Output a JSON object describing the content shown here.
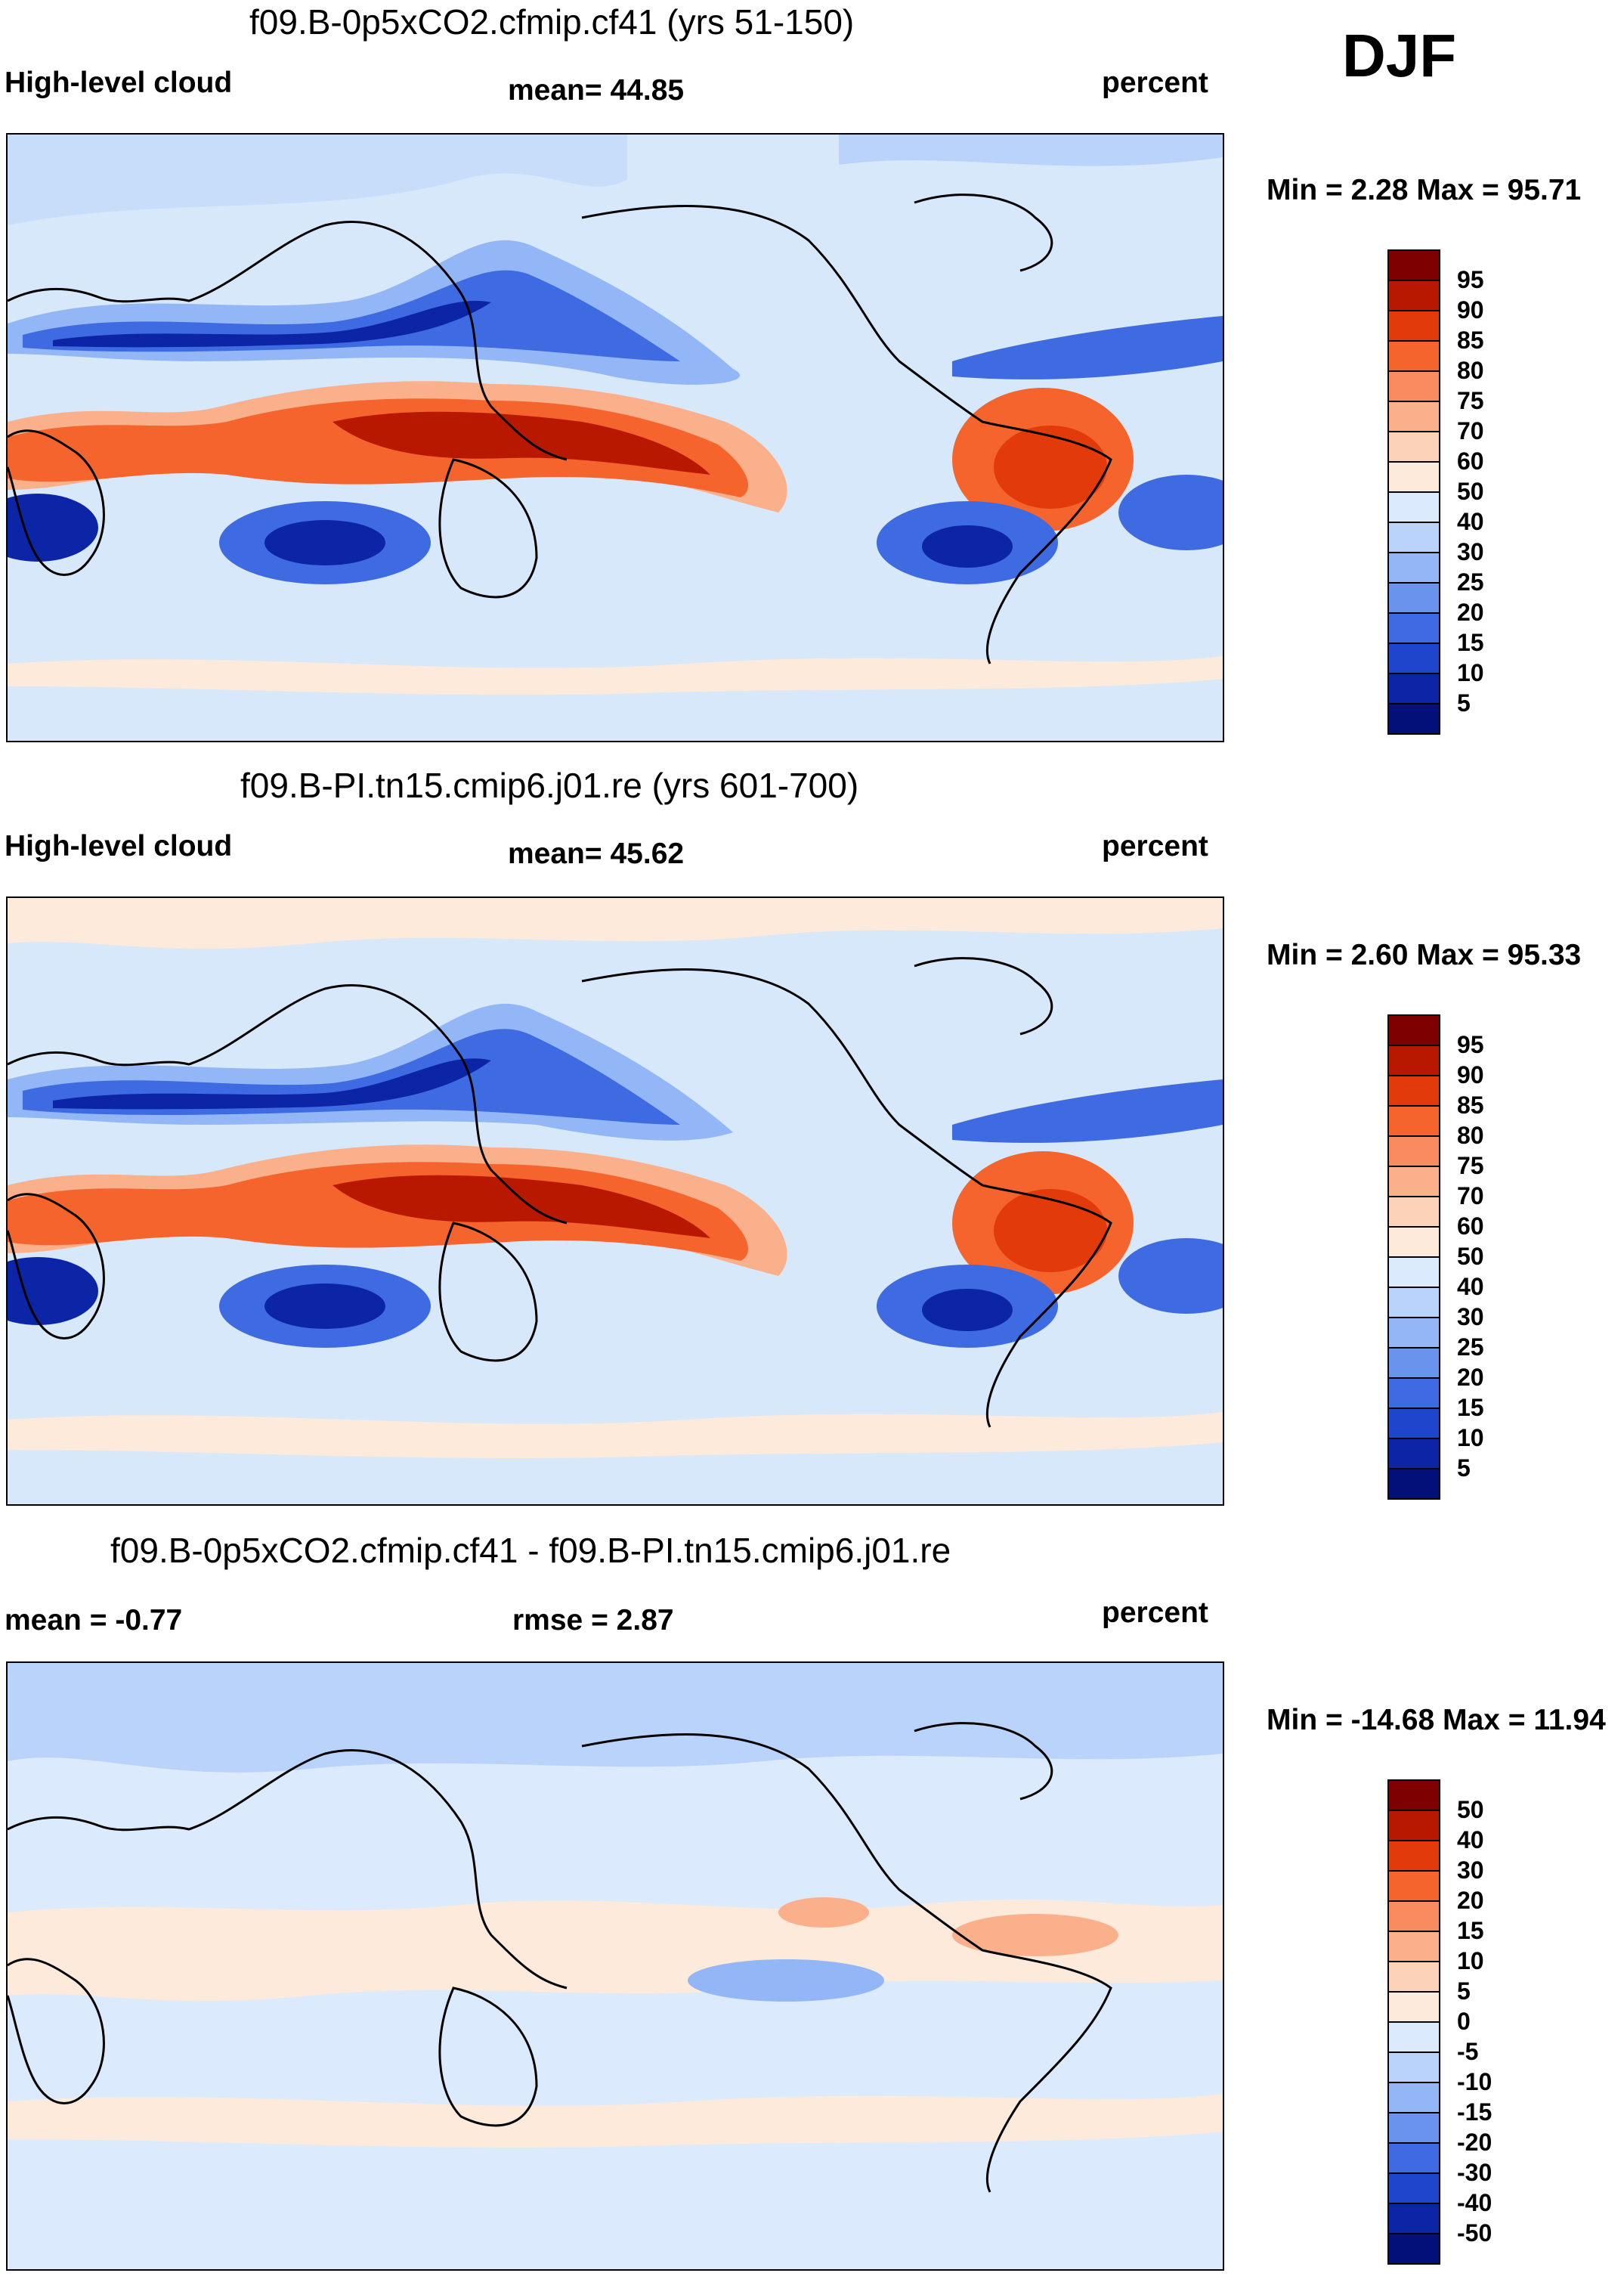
{
  "season": "DJF",
  "panels": [
    {
      "title": "f09.B-0p5xCO2.cfmip.cf41 (yrs 51-150)",
      "left_label": "High-level cloud",
      "center_label": "mean=  44.85",
      "right_label": "percent",
      "minmax": "Min =   2.28 Max =  95.71",
      "colorbar": {
        "labels": [
          "95",
          "90",
          "85",
          "80",
          "75",
          "70",
          "60",
          "50",
          "40",
          "30",
          "25",
          "20",
          "15",
          "10",
          "5"
        ],
        "colors": [
          "#7e0000",
          "#b81800",
          "#e23a0a",
          "#f6642e",
          "#f98c5e",
          "#fbb08c",
          "#fcd2b8",
          "#fdeadb",
          "#dbeafc",
          "#b9d3fb",
          "#93b7f6",
          "#6a93ee",
          "#3e6ae2",
          "#1f45cc",
          "#0c24a6",
          "#03107a"
        ]
      }
    },
    {
      "title": "f09.B-PI.tn15.cmip6.j01.re (yrs 601-700)",
      "left_label": "High-level cloud",
      "center_label": "mean=  45.62",
      "right_label": "percent",
      "minmax": "Min =   2.60 Max =  95.33",
      "colorbar": {
        "labels": [
          "95",
          "90",
          "85",
          "80",
          "75",
          "70",
          "60",
          "50",
          "40",
          "30",
          "25",
          "20",
          "15",
          "10",
          "5"
        ],
        "colors": [
          "#7e0000",
          "#b81800",
          "#e23a0a",
          "#f6642e",
          "#f98c5e",
          "#fbb08c",
          "#fcd2b8",
          "#fdeadb",
          "#dbeafc",
          "#b9d3fb",
          "#93b7f6",
          "#6a93ee",
          "#3e6ae2",
          "#1f45cc",
          "#0c24a6",
          "#03107a"
        ]
      }
    },
    {
      "title": "f09.B-0p5xCO2.cfmip.cf41 - f09.B-PI.tn15.cmip6.j01.re",
      "left_label": "mean =  -0.77",
      "center_label": "rmse =   2.87",
      "right_label": "percent",
      "minmax": "Min = -14.68 Max =  11.94",
      "colorbar": {
        "labels": [
          "50",
          "40",
          "30",
          "20",
          "15",
          "10",
          "5",
          "0",
          "-5",
          "-10",
          "-15",
          "-20",
          "-30",
          "-40",
          "-50"
        ],
        "colors": [
          "#7e0000",
          "#b81800",
          "#e23a0a",
          "#f6642e",
          "#f98c5e",
          "#fbb08c",
          "#fcd2b8",
          "#fdeadb",
          "#dbeafc",
          "#b9d3fb",
          "#93b7f6",
          "#6a93ee",
          "#3e6ae2",
          "#1f45cc",
          "#0c24a6",
          "#03107a"
        ]
      }
    }
  ]
}
